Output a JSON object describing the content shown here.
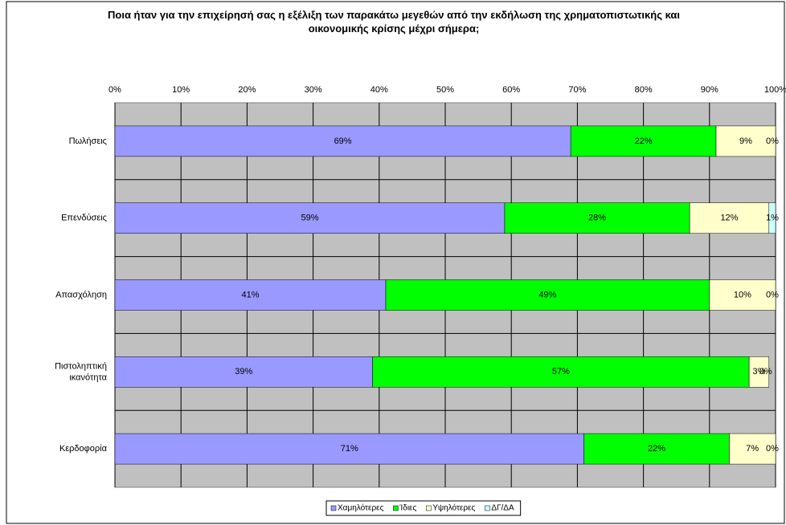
{
  "chart_data": {
    "type": "stacked-bar-horizontal",
    "title": "Ποια ήταν για την επιχείρησή σας η εξέλιξη των παρακάτω μεγεθών από την εκδήλωση της χρηματοπιστωτικής και οικονομικής κρίσης μέχρι σήμερα;",
    "categories": [
      "Πωλήσεις",
      "Επενδύσεις",
      "Απασχόληση",
      "Πιστοληπτική ικανότητα",
      "Κερδοφορία"
    ],
    "series": [
      {
        "name": "Χαμηλότερες",
        "color": "#9999ff",
        "values": [
          69,
          59,
          41,
          39,
          71
        ],
        "value_labels": [
          "69%",
          "59%",
          "41%",
          "39%",
          "71%"
        ]
      },
      {
        "name": "Ίδιες",
        "color": "#00ff00",
        "values": [
          22,
          28,
          49,
          57,
          22
        ],
        "value_labels": [
          "22%",
          "28%",
          "49%",
          "57%",
          "22%"
        ]
      },
      {
        "name": "Υψηλότερες",
        "color": "#ffffcc",
        "values": [
          9,
          12,
          10,
          3,
          7
        ],
        "value_labels": [
          "9%",
          "12%",
          "10%",
          "3%",
          "7%"
        ]
      },
      {
        "name": "ΔΓ/ΔΑ",
        "color": "#ccffff",
        "values": [
          0,
          1,
          0,
          0,
          0
        ],
        "value_labels": [
          "0%",
          "1%",
          "0%",
          "0%",
          "0%"
        ]
      }
    ],
    "xlim": [
      0,
      100
    ],
    "xticks": [
      {
        "value": 0,
        "label": "0%"
      },
      {
        "value": 10,
        "label": "10%"
      },
      {
        "value": 20,
        "label": "20%"
      },
      {
        "value": 30,
        "label": "30%"
      },
      {
        "value": 40,
        "label": "40%"
      },
      {
        "value": 50,
        "label": "50%"
      },
      {
        "value": 60,
        "label": "60%"
      },
      {
        "value": 70,
        "label": "70%"
      },
      {
        "value": 80,
        "label": "80%"
      },
      {
        "value": 90,
        "label": "90%"
      },
      {
        "value": 100,
        "label": "100%"
      }
    ],
    "grid": true,
    "legend": "bottom"
  }
}
